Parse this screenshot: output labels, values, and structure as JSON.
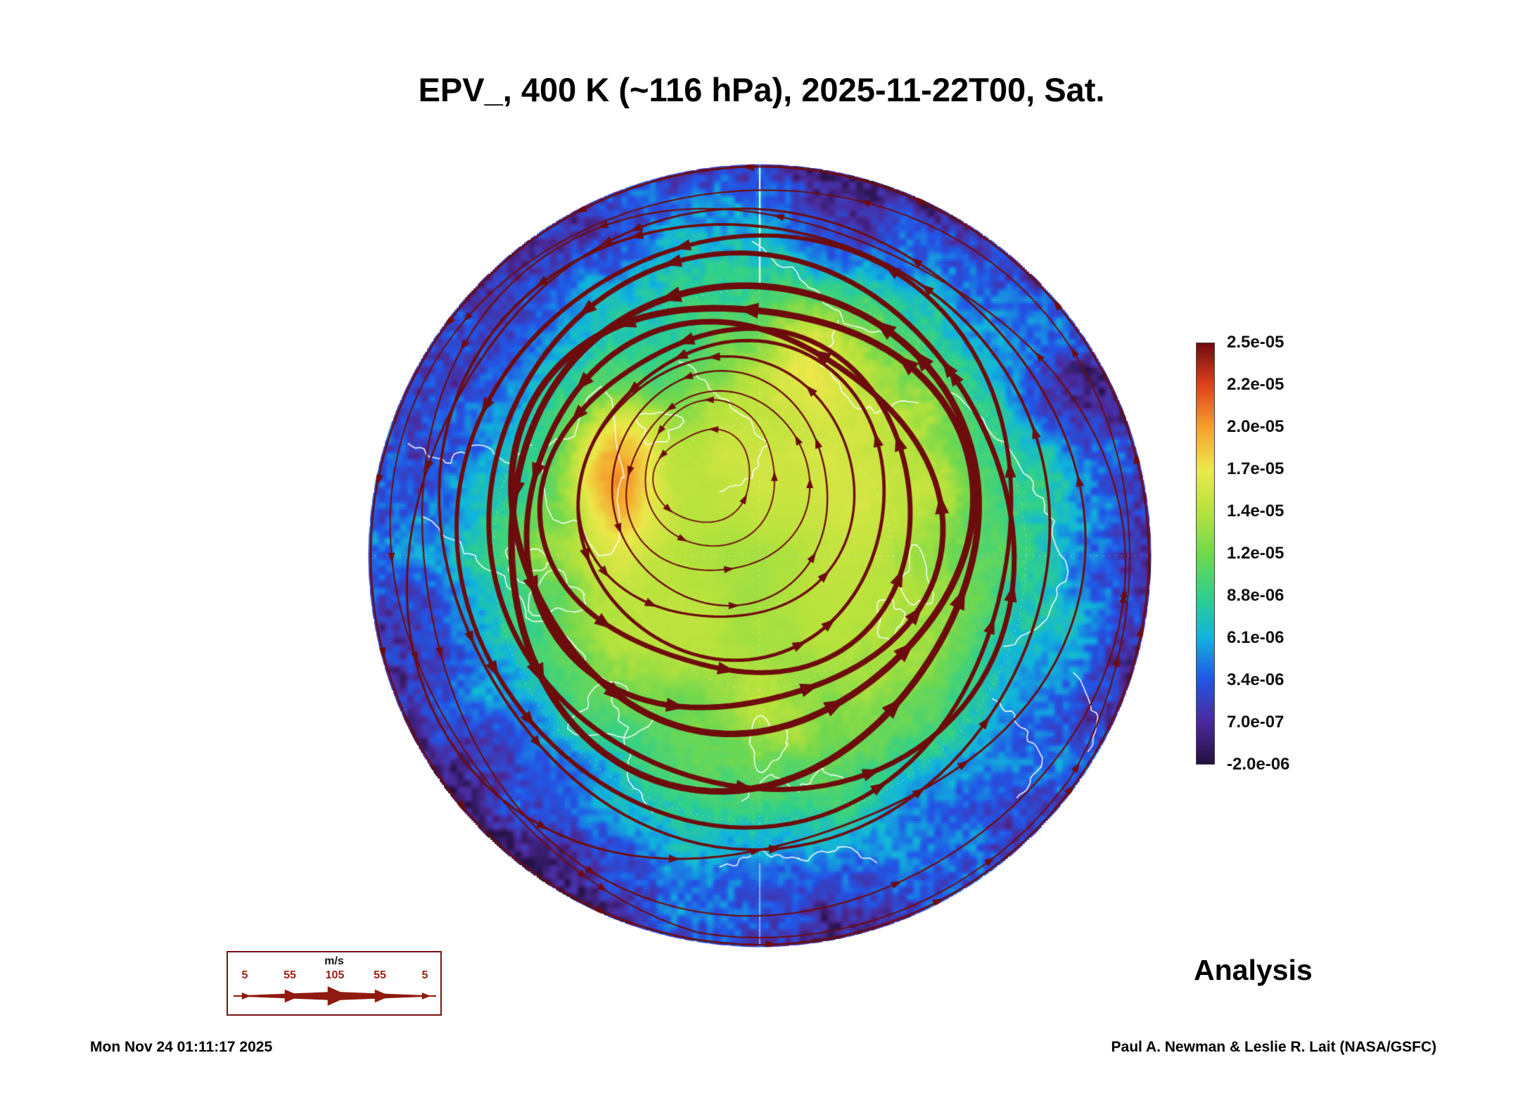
{
  "title": "EPV_, 400 K (~116 hPa), 2025-11-22T00, Sat.",
  "analysis_label": "Analysis",
  "footer": {
    "timestamp": "Mon Nov 24 01:11:17 2025",
    "credit": "Paul A. Newman & Leslie R. Lait (NASA/GSFC)"
  },
  "wind_legend": {
    "unit": "m/s",
    "tick_labels": [
      "5",
      "55",
      "105",
      "55",
      "5"
    ],
    "tick_speeds": [
      5,
      55,
      105,
      55,
      5
    ],
    "color": "#8f1a10"
  },
  "colorbar": {
    "tick_labels": [
      "2.5e-05",
      "2.2e-05",
      "2.0e-05",
      "1.7e-05",
      "1.4e-05",
      "1.2e-05",
      "8.8e-06",
      "6.1e-06",
      "3.4e-06",
      "7.0e-07",
      "-2.0e-06"
    ],
    "colors_top_to_bottom": [
      "#6f0b10",
      "#e0401e",
      "#f5a02c",
      "#ece84a",
      "#b6e23c",
      "#72d84e",
      "#30d08a",
      "#10b4dc",
      "#2255e6",
      "#4b2a9b",
      "#241040"
    ]
  },
  "chart_data": {
    "type": "heatmap",
    "title": "EPV_, 400 K (~116 hPa), 2025-11-22T00, Sat.",
    "field": "Ertel potential vorticity (EPV)",
    "level": "400 K (~116 hPa)",
    "valid_time": "2025-11-22T00",
    "run_label": "Analysis",
    "projection": "north polar stereographic",
    "value_range": [
      -2e-06,
      2.5e-05
    ],
    "colorbar_ticks": [
      2.5e-05,
      2.2e-05,
      2e-05,
      1.7e-05,
      1.4e-05,
      1.2e-05,
      8.8e-06,
      6.1e-06,
      3.4e-06,
      7e-07,
      -2e-06
    ],
    "colormap": {
      "values": [
        -2e-06,
        7e-07,
        3.4e-06,
        6.1e-06,
        8.8e-06,
        1.2e-05,
        1.4e-05,
        1.7e-05,
        2e-05,
        2.2e-05,
        2.5e-05
      ],
      "colors": [
        "#241040",
        "#4b2a9b",
        "#2255e6",
        "#10b4dc",
        "#30d08a",
        "#72d84e",
        "#b6e23c",
        "#ece84a",
        "#f5a02c",
        "#e0401e",
        "#6f0b10"
      ]
    },
    "radial_profile": [
      [
        0,
        1.15e-05
      ],
      [
        0.25,
        1.3e-05
      ],
      [
        0.45,
        1.25e-05
      ],
      [
        0.6,
        1.05e-05
      ],
      [
        0.7,
        7.5e-06
      ],
      [
        0.8,
        4.8e-06
      ],
      [
        0.9,
        2.8e-06
      ],
      [
        1,
        1.2e-06
      ]
    ],
    "anomalies": [
      {
        "x": -0.36,
        "y": -0.22,
        "sx": 0.07,
        "sy": 0.17,
        "amp": 6e-06
      },
      {
        "x": 0.1,
        "y": -0.12,
        "sx": 0.38,
        "sy": 0.3,
        "amp": 2.2e-06
      },
      {
        "x": 0.12,
        "y": -0.5,
        "sx": 0.09,
        "sy": 0.1,
        "amp": 3.5e-06
      },
      {
        "x": -0.47,
        "y": 0.56,
        "sx": 0.12,
        "sy": 0.1,
        "amp": -3.5e-06
      },
      {
        "x": -0.3,
        "y": -0.52,
        "sx": 0.12,
        "sy": 0.09,
        "amp": -3e-06
      }
    ],
    "streamlines": {
      "color": "#6d0c0c",
      "direction": "counterclockwise",
      "speed_legend_ms": [
        5,
        55,
        105
      ]
    },
    "overlays": [
      "streamlines",
      "coastlines",
      "graticule"
    ],
    "legend_position": "right"
  }
}
